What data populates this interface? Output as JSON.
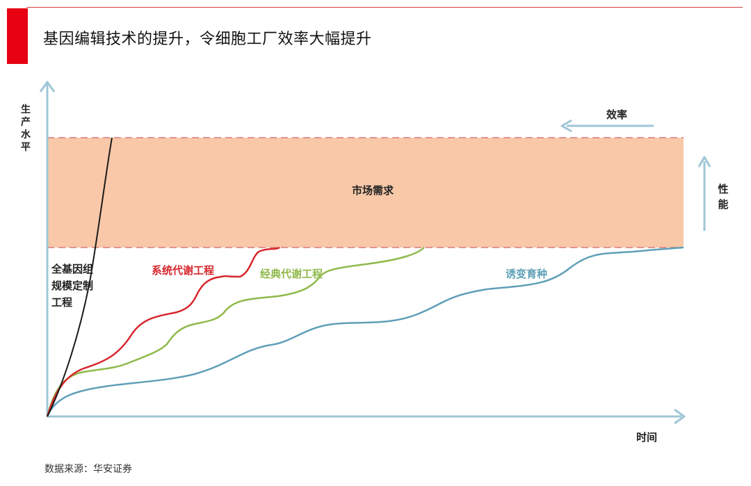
{
  "title": "基因编辑技术的提升，令细胞工厂效率大幅提升",
  "source": "数据来源：华安证券",
  "diagram": {
    "y_axis_label": "生产水平",
    "x_axis_label": "时间",
    "band_label": "市场需求",
    "efficiency_label": "效率",
    "performance_label": "性能",
    "curves": [
      {
        "label": "全基因组规模定制工程",
        "lines": [
          "全基因组",
          "规模定制",
          "工程"
        ],
        "color": "#1a1a1a"
      },
      {
        "label": "系统代谢工程",
        "color": "#d7262c"
      },
      {
        "label": "经典代谢工程",
        "color": "#8fb94b"
      },
      {
        "label": "诱变育种",
        "color": "#5f9fb7"
      }
    ],
    "colors": {
      "axis": "#9fc6d6",
      "band_fill": "#f8c8a8",
      "band_border": "#d87a7a",
      "accent": "#e60012"
    }
  }
}
